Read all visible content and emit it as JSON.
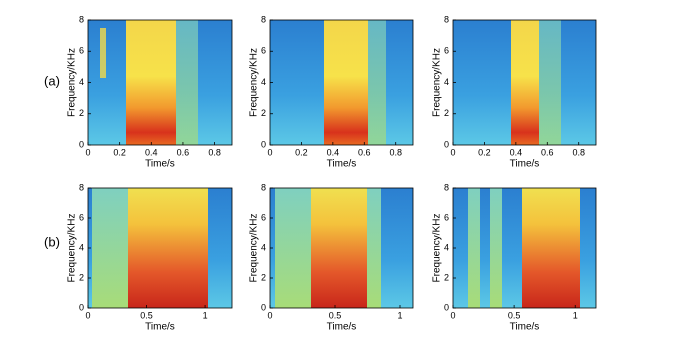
{
  "row_labels": [
    "(a)",
    "(b)"
  ],
  "chart_data": [
    {
      "type": "spectrogram",
      "xlabel": "Time/s",
      "ylabel": "Frequency/KHz",
      "xlim": [
        0,
        0.91
      ],
      "xticks": [
        0,
        0.2,
        0.4,
        0.6,
        0.8
      ],
      "ylim": [
        0,
        8
      ],
      "yticks": [
        0,
        2,
        4,
        6,
        8
      ]
    },
    {
      "type": "spectrogram",
      "xlabel": "Time/s",
      "ylabel": "Frequency/KHz",
      "xlim": [
        0,
        0.91
      ],
      "xticks": [
        0,
        0.2,
        0.4,
        0.6,
        0.8
      ],
      "ylim": [
        0,
        8
      ],
      "yticks": [
        0,
        2,
        4,
        6,
        8
      ]
    },
    {
      "type": "spectrogram",
      "xlabel": "Time/s",
      "ylabel": "Frequency/KHz",
      "xlim": [
        0,
        0.91
      ],
      "xticks": [
        0,
        0.2,
        0.4,
        0.6,
        0.8
      ],
      "ylim": [
        0,
        8
      ],
      "yticks": [
        0,
        2,
        4,
        6,
        8
      ]
    },
    {
      "type": "spectrogram",
      "xlabel": "Time/s",
      "ylabel": "Frequency/KHz",
      "xlim": [
        0,
        1.23
      ],
      "xticks": [
        0,
        0.5,
        1
      ],
      "ylim": [
        0,
        8
      ],
      "yticks": [
        0,
        2,
        4,
        6,
        8
      ]
    },
    {
      "type": "spectrogram",
      "xlabel": "Time/s",
      "ylabel": "Frequency/KHz",
      "xlim": [
        0,
        1.1
      ],
      "xticks": [
        0,
        0.5,
        1
      ],
      "ylim": [
        0,
        8
      ],
      "yticks": [
        0,
        2,
        4,
        6,
        8
      ]
    },
    {
      "type": "spectrogram",
      "xlabel": "Time/s",
      "ylabel": "Frequency/KHz",
      "xlim": [
        0,
        1.17
      ],
      "xticks": [
        0,
        0.5,
        1
      ],
      "ylim": [
        0,
        8
      ],
      "yticks": [
        0,
        2,
        4,
        6,
        8
      ]
    }
  ]
}
